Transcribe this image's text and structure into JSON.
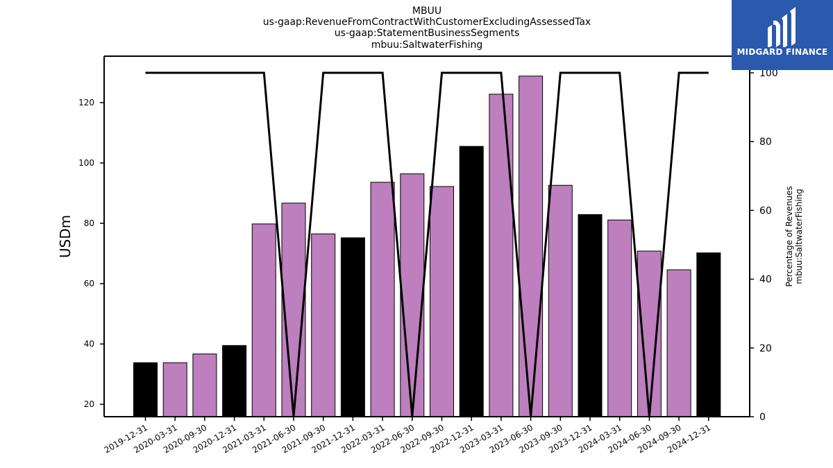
{
  "chart_data": {
    "type": "bar",
    "title_lines": [
      "MBUU",
      "us-gaap:RevenueFromContractWithCustomerExcludingAssessedTax",
      "us-gaap:StatementBusinessSegments",
      "mbuu:SaltwaterFishing"
    ],
    "ylabel": "USDm",
    "y2label_lines": [
      "Percentage of Revenues",
      "mbuu:SaltwaterFishing"
    ],
    "categories": [
      "2019-12-31",
      "2020-03-31",
      "2020-09-30",
      "2020-12-31",
      "2021-03-31",
      "2021-06-30",
      "2021-09-30",
      "2021-12-31",
      "2022-03-31",
      "2022-06-30",
      "2022-09-30",
      "2022-12-31",
      "2023-03-31",
      "2023-06-30",
      "2023-09-30",
      "2023-12-31",
      "2024-03-31",
      "2024-06-30",
      "2024-09-30",
      "2024-12-31"
    ],
    "values": [
      33.8,
      33.8,
      36.7,
      39.5,
      79.8,
      86.7,
      76.5,
      75.2,
      93.6,
      96.4,
      92.2,
      105.5,
      122.8,
      128.8,
      92.6,
      82.9,
      81.1,
      70.8,
      64.6,
      70.2
    ],
    "bar_colors": [
      "#000000",
      "#bd7fbd",
      "#bd7fbd",
      "#000000",
      "#bd7fbd",
      "#bd7fbd",
      "#bd7fbd",
      "#000000",
      "#bd7fbd",
      "#bd7fbd",
      "#bd7fbd",
      "#000000",
      "#bd7fbd",
      "#bd7fbd",
      "#bd7fbd",
      "#000000",
      "#bd7fbd",
      "#bd7fbd",
      "#bd7fbd",
      "#000000"
    ],
    "percentage": [
      100,
      100,
      100,
      100,
      100,
      0,
      100,
      100,
      100,
      0,
      100,
      100,
      100,
      0,
      100,
      100,
      100,
      0,
      100,
      100
    ],
    "ylim": [
      15.9,
      135.4
    ],
    "yticks": [
      20,
      40,
      60,
      80,
      100,
      120
    ],
    "y2lim": [
      0,
      100
    ],
    "y2ticks": [
      0,
      20,
      40,
      60,
      80,
      100
    ],
    "grid": false,
    "line_color": "#000000"
  },
  "logo": {
    "text": "MIDGARD FINANCE",
    "background": "#2a59ad"
  }
}
